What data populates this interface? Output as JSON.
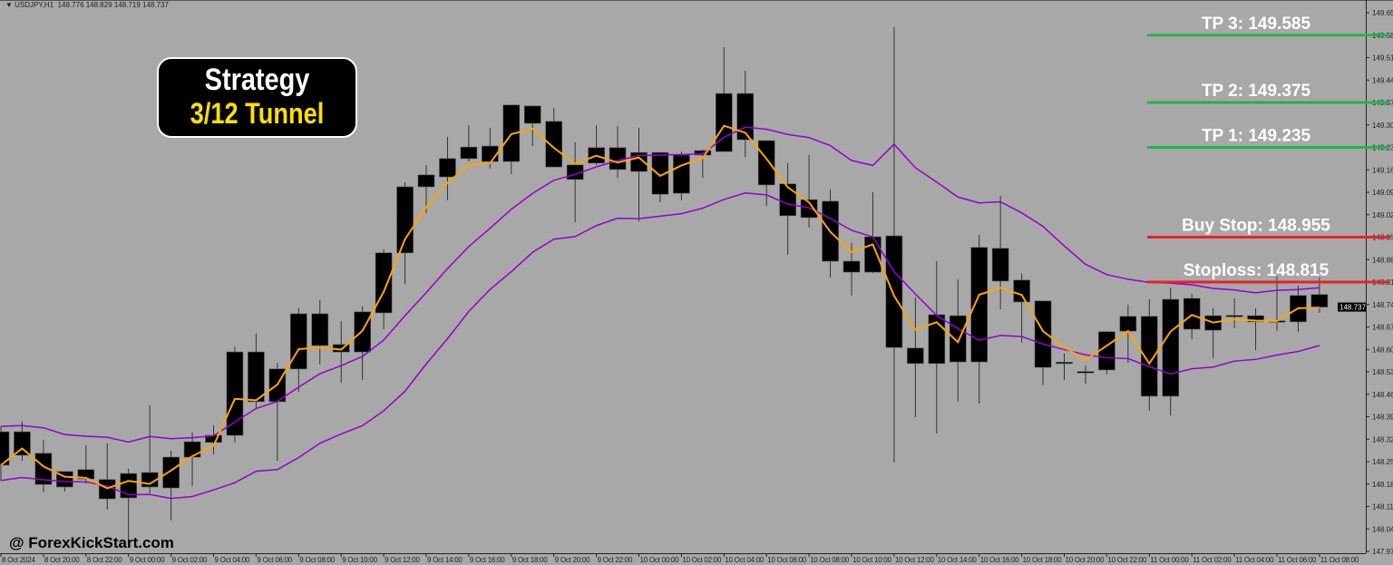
{
  "header": {
    "symbol": "USDJPY,H1",
    "ohlc": "148.776 148.829 148.719 148.737"
  },
  "badge": {
    "line1": "Strategy",
    "line2": "3/12 Tunnel"
  },
  "watermark": "@ ForexKickStart.com",
  "colors": {
    "background": "#a8a8a8",
    "candle": "#000000",
    "fast_ma": "#ffa500",
    "tunnel": "#9400d3",
    "take_profit": "#22b34a",
    "stop": "#e8202a"
  },
  "chart_data": {
    "type": "candlestick",
    "symbol": "USDJPY",
    "timeframe": "H1",
    "ylim": [
      147.975,
      149.655
    ],
    "yticks": [
      149.655,
      149.585,
      149.515,
      149.445,
      149.375,
      149.305,
      149.235,
      149.165,
      149.095,
      149.025,
      148.955,
      148.885,
      148.815,
      148.745,
      148.675,
      148.605,
      148.535,
      148.465,
      148.395,
      148.325,
      148.255,
      148.185,
      148.115,
      148.045,
      147.975
    ],
    "current_price": "148.737",
    "xticks": [
      "8 Oct 2024",
      "8 Oct 20:00",
      "8 Oct 22:00",
      "9 Oct 00:00",
      "9 Oct 02:00",
      "9 Oct 04:00",
      "9 Oct 06:00",
      "9 Oct 08:00",
      "9 Oct 10:00",
      "9 Oct 12:00",
      "9 Oct 14:00",
      "9 Oct 16:00",
      "9 Oct 18:00",
      "9 Oct 20:00",
      "9 Oct 22:00",
      "10 Oct 00:00",
      "10 Oct 02:00",
      "10 Oct 04:00",
      "10 Oct 06:00",
      "10 Oct 08:00",
      "10 Oct 10:00",
      "10 Oct 12:00",
      "10 Oct 14:00",
      "10 Oct 16:00",
      "10 Oct 18:00",
      "10 Oct 20:00",
      "10 Oct 22:00",
      "11 Oct 00:00",
      "11 Oct 02:00",
      "11 Oct 04:00",
      "11 Oct 06:00",
      "11 Oct 08:00"
    ],
    "candles_ohlc": [
      [
        148.348,
        148.365,
        148.196,
        148.244
      ],
      [
        148.275,
        148.38,
        148.258,
        148.348
      ],
      [
        148.281,
        148.323,
        148.159,
        148.184
      ],
      [
        148.224,
        148.224,
        148.162,
        148.176
      ],
      [
        148.23,
        148.306,
        148.187,
        148.201
      ],
      [
        148.199,
        148.312,
        148.105,
        148.139
      ],
      [
        148.142,
        148.233,
        148.006,
        148.218
      ],
      [
        148.221,
        148.43,
        148.156,
        148.176
      ],
      [
        148.173,
        148.289,
        148.071,
        148.269
      ],
      [
        148.269,
        148.346,
        148.179,
        148.317
      ],
      [
        148.315,
        148.368,
        148.278,
        148.337
      ],
      [
        148.337,
        148.614,
        148.315,
        148.597
      ],
      [
        148.597,
        148.654,
        148.422,
        148.442
      ],
      [
        148.442,
        148.563,
        148.258,
        148.544
      ],
      [
        148.544,
        148.733,
        148.473,
        148.716
      ],
      [
        148.716,
        148.759,
        148.558,
        148.617
      ],
      [
        148.62,
        148.693,
        148.501,
        148.597
      ],
      [
        148.597,
        148.739,
        148.51,
        148.722
      ],
      [
        148.719,
        148.917,
        148.668,
        148.906
      ],
      [
        148.906,
        149.126,
        148.809,
        149.112
      ],
      [
        149.112,
        149.18,
        149.03,
        149.149
      ],
      [
        149.143,
        149.268,
        149.07,
        149.2
      ],
      [
        149.2,
        149.304,
        149.191,
        149.236
      ],
      [
        149.239,
        149.296,
        149.169,
        149.191
      ],
      [
        149.191,
        149.367,
        149.152,
        149.367
      ],
      [
        149.364,
        149.364,
        149.239,
        149.31
      ],
      [
        149.316,
        149.358,
        149.174,
        149.174
      ],
      [
        149.18,
        149.251,
        149.002,
        149.135
      ],
      [
        149.186,
        149.304,
        149.18,
        149.234
      ],
      [
        149.234,
        149.301,
        149.14,
        149.166
      ],
      [
        149.16,
        149.296,
        149.005,
        149.219
      ],
      [
        149.219,
        149.219,
        149.064,
        149.089
      ],
      [
        149.092,
        149.222,
        149.07,
        149.211
      ],
      [
        149.211,
        149.228,
        149.14,
        149.225
      ],
      [
        149.222,
        149.548,
        149.222,
        149.403
      ],
      [
        149.403,
        149.474,
        149.205,
        149.259
      ],
      [
        149.256,
        149.256,
        149.053,
        149.118
      ],
      [
        149.121,
        149.186,
        148.9,
        149.022
      ],
      [
        149.072,
        149.211,
        148.985,
        149.016
      ],
      [
        149.067,
        149.104,
        148.829,
        148.88
      ],
      [
        148.88,
        148.937,
        148.773,
        148.846
      ],
      [
        148.846,
        149.095,
        148.843,
        148.956
      ],
      [
        148.959,
        149.61,
        148.252,
        148.611
      ],
      [
        148.609,
        148.767,
        148.394,
        148.561
      ],
      [
        148.561,
        148.88,
        148.343,
        148.713
      ],
      [
        148.71,
        148.824,
        148.442,
        148.566
      ],
      [
        148.566,
        148.962,
        148.436,
        148.923
      ],
      [
        148.92,
        149.084,
        148.73,
        148.818
      ],
      [
        148.821,
        148.841,
        148.626,
        148.753
      ],
      [
        148.756,
        148.756,
        148.493,
        148.549
      ],
      [
        148.565,
        148.592,
        148.51,
        148.561
      ],
      [
        148.536,
        148.555,
        148.498,
        148.534
      ],
      [
        148.541,
        148.662,
        148.527,
        148.66
      ],
      [
        148.662,
        148.744,
        148.563,
        148.708
      ],
      [
        148.708,
        148.761,
        148.414,
        148.459
      ],
      [
        148.459,
        148.798,
        148.399,
        148.761
      ],
      [
        148.668,
        148.778,
        148.637,
        148.764
      ],
      [
        148.71,
        148.733,
        148.578,
        148.665
      ],
      [
        148.711,
        148.764,
        148.671,
        148.709
      ],
      [
        148.71,
        148.733,
        148.603,
        148.691
      ],
      [
        148.694,
        148.832,
        148.662,
        148.692
      ],
      [
        148.691,
        148.804,
        148.66,
        148.773
      ],
      [
        148.776,
        148.829,
        148.719,
        148.737
      ]
    ],
    "indicators": {
      "fast_ma_period": 3,
      "tunnel_period": 12
    },
    "levels": [
      {
        "label": "TP 3: 149.585",
        "price": 149.585,
        "kind": "take_profit"
      },
      {
        "label": "TP 2: 149.375",
        "price": 149.375,
        "kind": "take_profit"
      },
      {
        "label": "TP 1: 149.235",
        "price": 149.235,
        "kind": "take_profit"
      },
      {
        "label": "Buy Stop: 148.955",
        "price": 148.955,
        "kind": "stop"
      },
      {
        "label": "Stoploss: 148.815",
        "price": 148.815,
        "kind": "stop"
      }
    ]
  }
}
